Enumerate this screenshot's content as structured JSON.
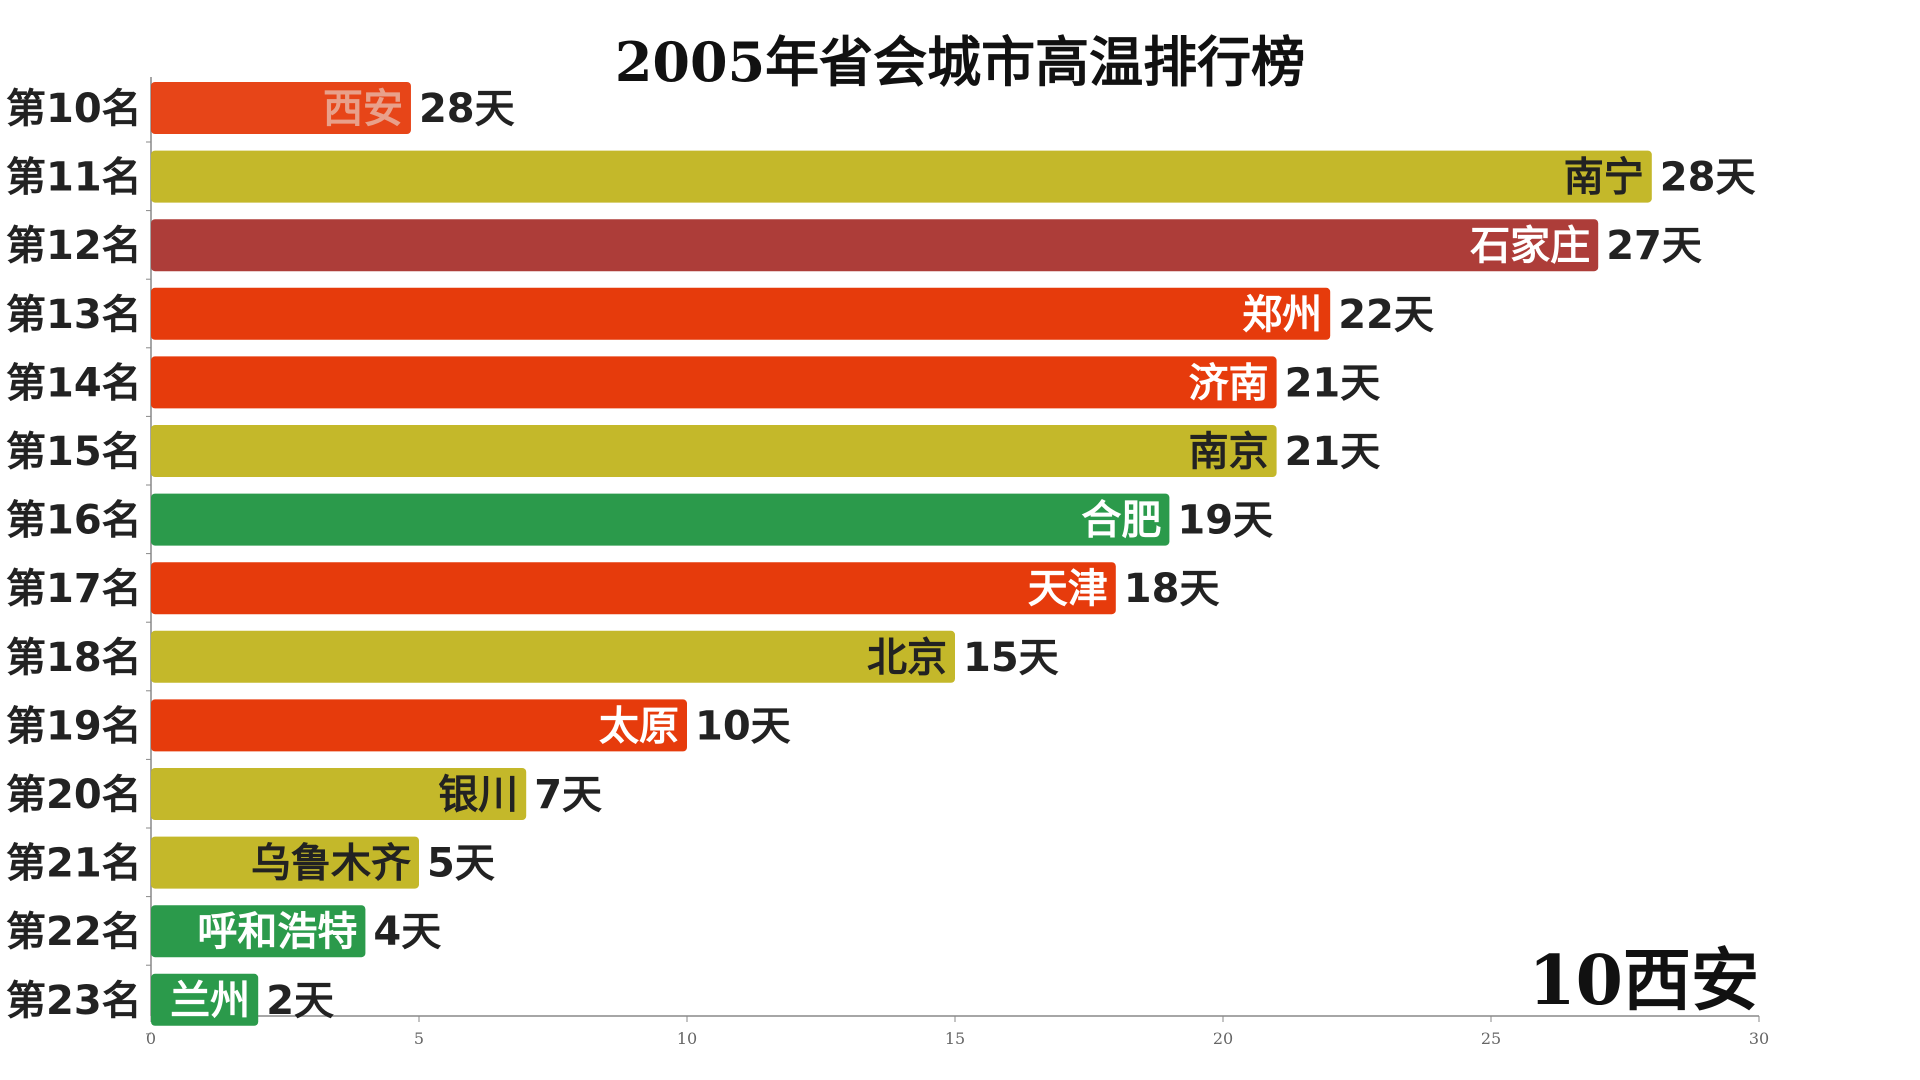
{
  "chart_data": {
    "type": "bar",
    "orientation": "horizontal",
    "title": "2005年省会城市高温排行榜",
    "current_frame_label": "10西安",
    "value_suffix": "天",
    "xlim": [
      0,
      30
    ],
    "x_ticks": [
      "0",
      "5",
      "10",
      "15",
      "20",
      "25",
      "30"
    ],
    "grid": false,
    "rows": [
      {
        "rank": "第10名",
        "city": "西安",
        "value": 28,
        "color": "#e63b0c",
        "fading": true
      },
      {
        "rank": "第11名",
        "city": "南宁",
        "value": 28,
        "color": "#c4b82a",
        "label_color": "#222"
      },
      {
        "rank": "第12名",
        "city": "石家庄",
        "value": 27,
        "color": "#ad3d39",
        "label_color": "#fff"
      },
      {
        "rank": "第13名",
        "city": "郑州",
        "value": 22,
        "color": "#e63b0c",
        "label_color": "#fff"
      },
      {
        "rank": "第14名",
        "city": "济南",
        "value": 21,
        "color": "#e63b0c",
        "label_color": "#fff"
      },
      {
        "rank": "第15名",
        "city": "南京",
        "value": 21,
        "color": "#c4b82a",
        "label_color": "#222"
      },
      {
        "rank": "第16名",
        "city": "合肥",
        "value": 19,
        "color": "#2b9a4b",
        "label_color": "#fff"
      },
      {
        "rank": "第17名",
        "city": "天津",
        "value": 18,
        "color": "#e63b0c",
        "label_color": "#fff"
      },
      {
        "rank": "第18名",
        "city": "北京",
        "value": 15,
        "color": "#c4b82a",
        "label_color": "#222"
      },
      {
        "rank": "第19名",
        "city": "太原",
        "value": 10,
        "color": "#e63b0c",
        "label_color": "#fff"
      },
      {
        "rank": "第20名",
        "city": "银川",
        "value": 7,
        "color": "#c4b82a",
        "label_color": "#222"
      },
      {
        "rank": "第21名",
        "city": "乌鲁木齐",
        "value": 5,
        "color": "#c4b82a",
        "label_color": "#222"
      },
      {
        "rank": "第22名",
        "city": "呼和浩特",
        "value": 4,
        "color": "#2b9a4b",
        "label_color": "#fff"
      },
      {
        "rank": "第23名",
        "city": "兰州",
        "value": 2,
        "color": "#2b9a4b",
        "label_color": "#fff"
      }
    ]
  }
}
